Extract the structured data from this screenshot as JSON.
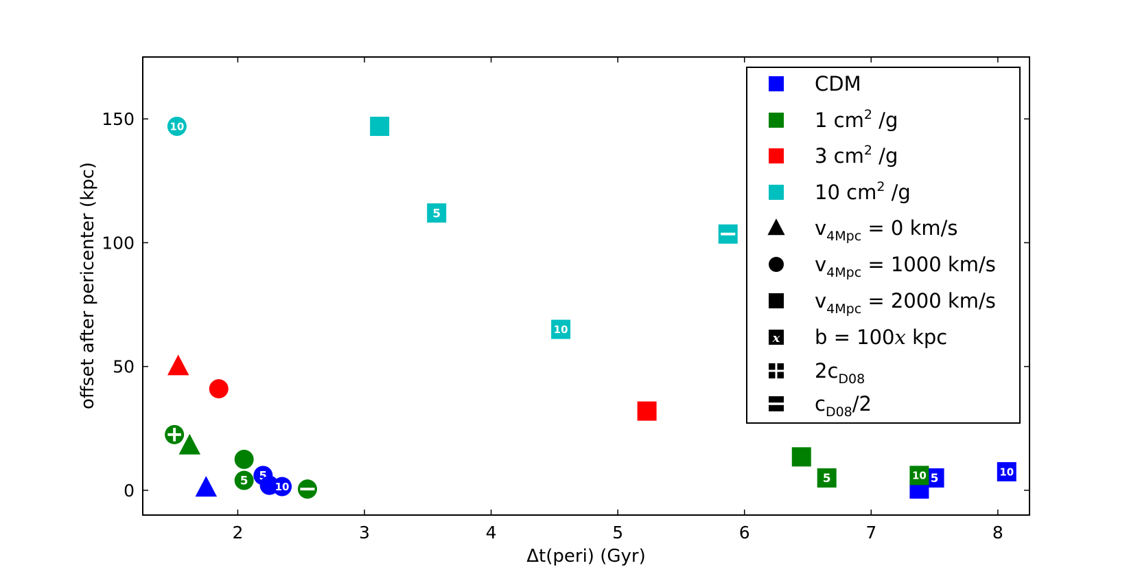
{
  "chart_data": {
    "type": "scatter",
    "title": "",
    "xlabel": "Δt(peri) (Gyr)",
    "ylabel": "offset after pericenter (kpc)",
    "xlim": [
      1.25,
      8.25
    ],
    "ylim": [
      -10,
      175
    ],
    "xticks": [
      2,
      3,
      4,
      5,
      6,
      7,
      8
    ],
    "yticks": [
      0,
      50,
      100,
      150
    ],
    "colors": {
      "CDM": "#0000ff",
      "1 cm2/g": "#008000",
      "3 cm2/g": "#ff0000",
      "10 cm2/g": "#00bfbf"
    },
    "legend": {
      "placement": "top-right",
      "entries": [
        {
          "marker": "square",
          "color": "#0000ff",
          "label": "CDM"
        },
        {
          "marker": "square",
          "color": "#008000",
          "label": "1 cm",
          "sup": "2",
          "suffix": " /g"
        },
        {
          "marker": "square",
          "color": "#ff0000",
          "label": "3 cm",
          "sup": "2",
          "suffix": " /g"
        },
        {
          "marker": "square",
          "color": "#00bfbf",
          "label": "10 cm",
          "sup": "2",
          "suffix": " /g"
        },
        {
          "marker": "triangle",
          "color": "#000000",
          "label": "v",
          "sub": "4Mpc",
          "suffix": " = 0 km/s"
        },
        {
          "marker": "circle",
          "color": "#000000",
          "label": "v",
          "sub": "4Mpc",
          "suffix": " = 1000 km/s"
        },
        {
          "marker": "square",
          "color": "#000000",
          "label": "v",
          "sub": "4Mpc",
          "suffix": " = 2000 km/s"
        },
        {
          "marker": "square",
          "color": "#000000",
          "overlay": "x",
          "label": "b = 100",
          "italic": "x",
          "suffix": " kpc"
        },
        {
          "marker": "square",
          "color": "#000000",
          "overlay": "plus",
          "label": "2c",
          "sub": "D08",
          "suffix": ""
        },
        {
          "marker": "square",
          "color": "#000000",
          "overlay": "minus",
          "label": "c",
          "sub": "D08",
          "suffix": "/2"
        }
      ]
    },
    "points": [
      {
        "model": "CDM",
        "shape": "triangle",
        "x": 1.75,
        "y": 1,
        "label": ""
      },
      {
        "model": "CDM",
        "shape": "circle",
        "x": 2.2,
        "y": 6,
        "label": "5"
      },
      {
        "model": "CDM",
        "shape": "circle",
        "x": 2.25,
        "y": 2,
        "label": ""
      },
      {
        "model": "CDM",
        "shape": "circle",
        "x": 2.35,
        "y": 1.5,
        "label": "10"
      },
      {
        "model": "CDM",
        "shape": "square",
        "x": 7.38,
        "y": 0.5,
        "label": ""
      },
      {
        "model": "CDM",
        "shape": "square",
        "x": 7.5,
        "y": 5,
        "label": "5"
      },
      {
        "model": "CDM",
        "shape": "square",
        "x": 8.07,
        "y": 7.5,
        "label": "10"
      },
      {
        "model": "1 cm2/g",
        "shape": "circle",
        "x": 1.5,
        "y": 22.5,
        "label": "",
        "overlay": "plus"
      },
      {
        "model": "1 cm2/g",
        "shape": "triangle",
        "x": 1.62,
        "y": 18,
        "label": ""
      },
      {
        "model": "1 cm2/g",
        "shape": "circle",
        "x": 2.05,
        "y": 12.5,
        "label": ""
      },
      {
        "model": "1 cm2/g",
        "shape": "circle",
        "x": 2.05,
        "y": 4,
        "label": "5"
      },
      {
        "model": "1 cm2/g",
        "shape": "circle",
        "x": 2.55,
        "y": 0.5,
        "label": "",
        "overlay": "minus"
      },
      {
        "model": "1 cm2/g",
        "shape": "square",
        "x": 6.45,
        "y": 13.5,
        "label": ""
      },
      {
        "model": "1 cm2/g",
        "shape": "square",
        "x": 6.65,
        "y": 5,
        "label": "5"
      },
      {
        "model": "1 cm2/g",
        "shape": "square",
        "x": 7.38,
        "y": 6,
        "label": "10"
      },
      {
        "model": "3 cm2/g",
        "shape": "triangle",
        "x": 1.53,
        "y": 50,
        "label": ""
      },
      {
        "model": "3 cm2/g",
        "shape": "circle",
        "x": 1.85,
        "y": 41,
        "label": ""
      },
      {
        "model": "3 cm2/g",
        "shape": "square",
        "x": 5.23,
        "y": 32,
        "label": ""
      },
      {
        "model": "10 cm2/g",
        "shape": "circle",
        "x": 1.52,
        "y": 147,
        "label": "10"
      },
      {
        "model": "10 cm2/g",
        "shape": "square",
        "x": 3.12,
        "y": 147,
        "label": ""
      },
      {
        "model": "10 cm2/g",
        "shape": "square",
        "x": 3.57,
        "y": 112,
        "label": "5"
      },
      {
        "model": "10 cm2/g",
        "shape": "square",
        "x": 4.55,
        "y": 65,
        "label": "10"
      },
      {
        "model": "10 cm2/g",
        "shape": "square",
        "x": 5.87,
        "y": 103.5,
        "label": "",
        "overlay": "minus"
      }
    ]
  }
}
